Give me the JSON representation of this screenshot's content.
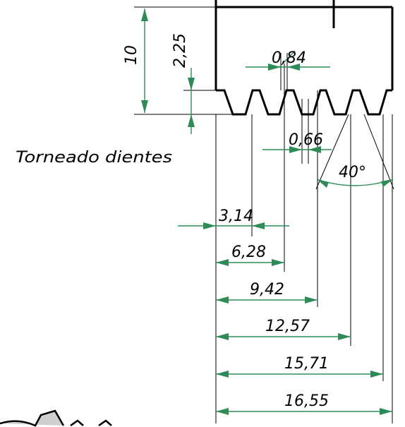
{
  "title": "Torneado dientes",
  "dimensions": {
    "height_total": "10",
    "tooth_depth": "2,25",
    "tooth_top_width": "0,84",
    "tooth_root_width": "0,66",
    "tooth_angle": "40°",
    "pitch_1": "3,14",
    "pitch_2": "6,28",
    "pitch_3": "9,42",
    "pitch_4": "12,57",
    "pitch_5": "15,71",
    "overall_length": "16,55"
  },
  "colors": {
    "dimension_line": "#2e8b57",
    "outline": "#000000"
  }
}
